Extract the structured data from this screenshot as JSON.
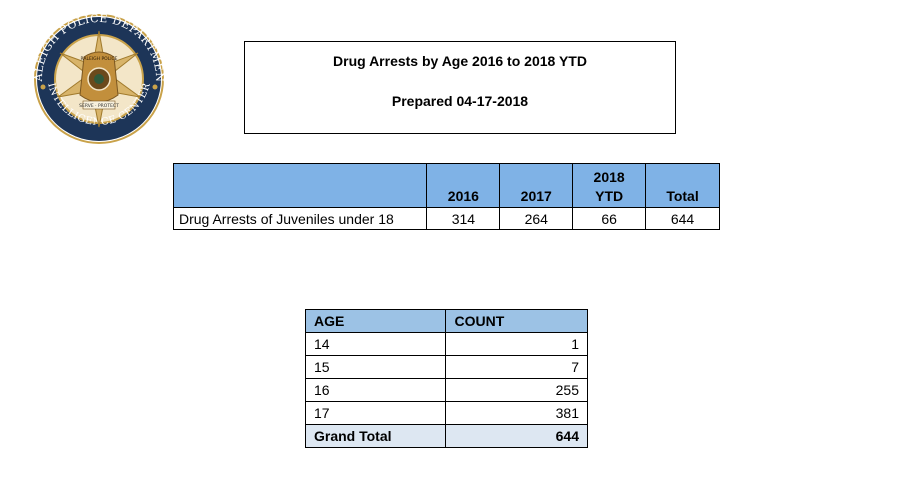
{
  "logo": {
    "text_top": "RALEIGH POLICE DEPARTMENT",
    "text_bottom": "INTELLIGENCE CENTER",
    "badge_top": "RALEIGH POLICE",
    "badge_bottom": "SERVE · PROTECT"
  },
  "title": {
    "line1": "Drug Arrests by Age 2016 to 2018 YTD",
    "line2": "Prepared 04-17-2018"
  },
  "summary_table": {
    "headers": [
      "",
      "2016",
      "2017",
      "2018\nYTD",
      "Total"
    ],
    "header_2018_line1": "2018",
    "header_2018_line2": "YTD",
    "row": {
      "label": "Drug Arrests of Juveniles under 18",
      "values": [
        "314",
        "264",
        "66",
        "644"
      ]
    }
  },
  "age_table": {
    "headers": [
      "AGE",
      "COUNT"
    ],
    "rows": [
      {
        "age": "14",
        "count": "1"
      },
      {
        "age": "15",
        "count": "7"
      },
      {
        "age": "16",
        "count": "255"
      },
      {
        "age": "17",
        "count": "381"
      }
    ],
    "grand_total_label": "Grand Total",
    "grand_total_value": "644"
  },
  "colors": {
    "summary_header": "#7fb2e6",
    "age_header": "#9cc2e5",
    "grand_total_row": "#dde7f2",
    "logo_navy": "#1d3558",
    "logo_gold": "#c9a24a"
  }
}
